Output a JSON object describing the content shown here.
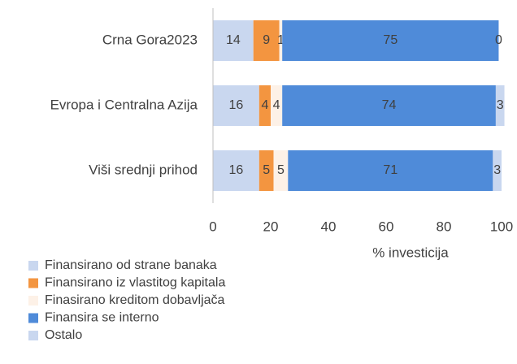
{
  "chart_data": {
    "type": "stacked-barh",
    "categories": [
      "Crna Gora2023",
      "Evropa i Centralna Azija",
      "Viši srednji prihod"
    ],
    "series": [
      {
        "name": "Finansirano od strane banaka",
        "color": "#c9d7ef",
        "values": [
          14,
          16,
          16
        ]
      },
      {
        "name": "Finansirano iz vlastitog kapitala",
        "color": "#f39540",
        "values": [
          9,
          4,
          5
        ]
      },
      {
        "name": "Finasirano kreditom dobavljača",
        "color": "#fdf1e7",
        "values": [
          1,
          4,
          5
        ]
      },
      {
        "name": "Finansira se interno",
        "color": "#4f8bd9",
        "values": [
          75,
          74,
          71
        ]
      },
      {
        "name": "Ostalo",
        "color": "#c9d7ef",
        "values": [
          0,
          3,
          3
        ]
      }
    ],
    "xlabel": "% investicija",
    "xlim": [
      0,
      100
    ],
    "xticks": [
      0,
      20,
      40,
      60,
      80,
      100
    ]
  }
}
